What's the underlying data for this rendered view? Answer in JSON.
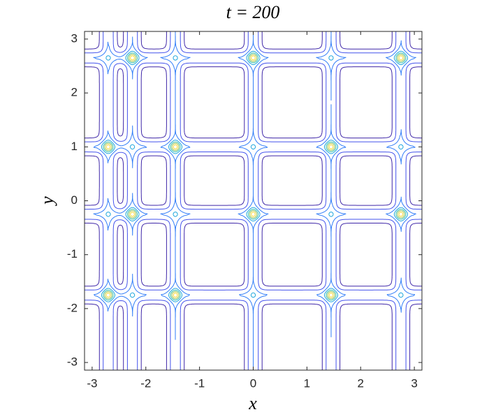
{
  "chart_data": {
    "type": "contour",
    "title": "t = 200",
    "xlabel": "x",
    "ylabel": "y",
    "xlim": [
      -3.1416,
      3.1416
    ],
    "ylim": [
      -3.1416,
      3.1416
    ],
    "xticks": [
      -3,
      -2,
      -1,
      0,
      1,
      2,
      3
    ],
    "yticks": [
      -3,
      -2,
      -1,
      0,
      1,
      2,
      3
    ],
    "ridges_x": [
      -2.7,
      -2.25,
      -1.45,
      0,
      1.45,
      2.75
    ],
    "ridges_y": [
      2.65,
      1.0,
      -0.25,
      -1.75
    ],
    "peaks": [
      {
        "x": -2.25,
        "y": 2.65
      },
      {
        "x": 0,
        "y": 2.65
      },
      {
        "x": 2.75,
        "y": 2.65
      },
      {
        "x": -2.7,
        "y": 1.0
      },
      {
        "x": -1.45,
        "y": 1.0
      },
      {
        "x": 1.45,
        "y": 1.0
      },
      {
        "x": -2.25,
        "y": -0.25
      },
      {
        "x": 0,
        "y": -0.25
      },
      {
        "x": 2.75,
        "y": -0.25
      },
      {
        "x": -2.7,
        "y": -1.75
      },
      {
        "x": -1.45,
        "y": -1.75
      },
      {
        "x": 1.45,
        "y": -1.75
      }
    ],
    "levels": [
      0.05,
      0.2,
      0.5,
      0.9,
      1.3,
      1.7,
      2.1
    ],
    "colors": [
      "#3e26a8",
      "#4352ec",
      "#2f7cf8",
      "#1aa5dc",
      "#2ebba8",
      "#a5c24a",
      "#f9d830"
    ]
  }
}
